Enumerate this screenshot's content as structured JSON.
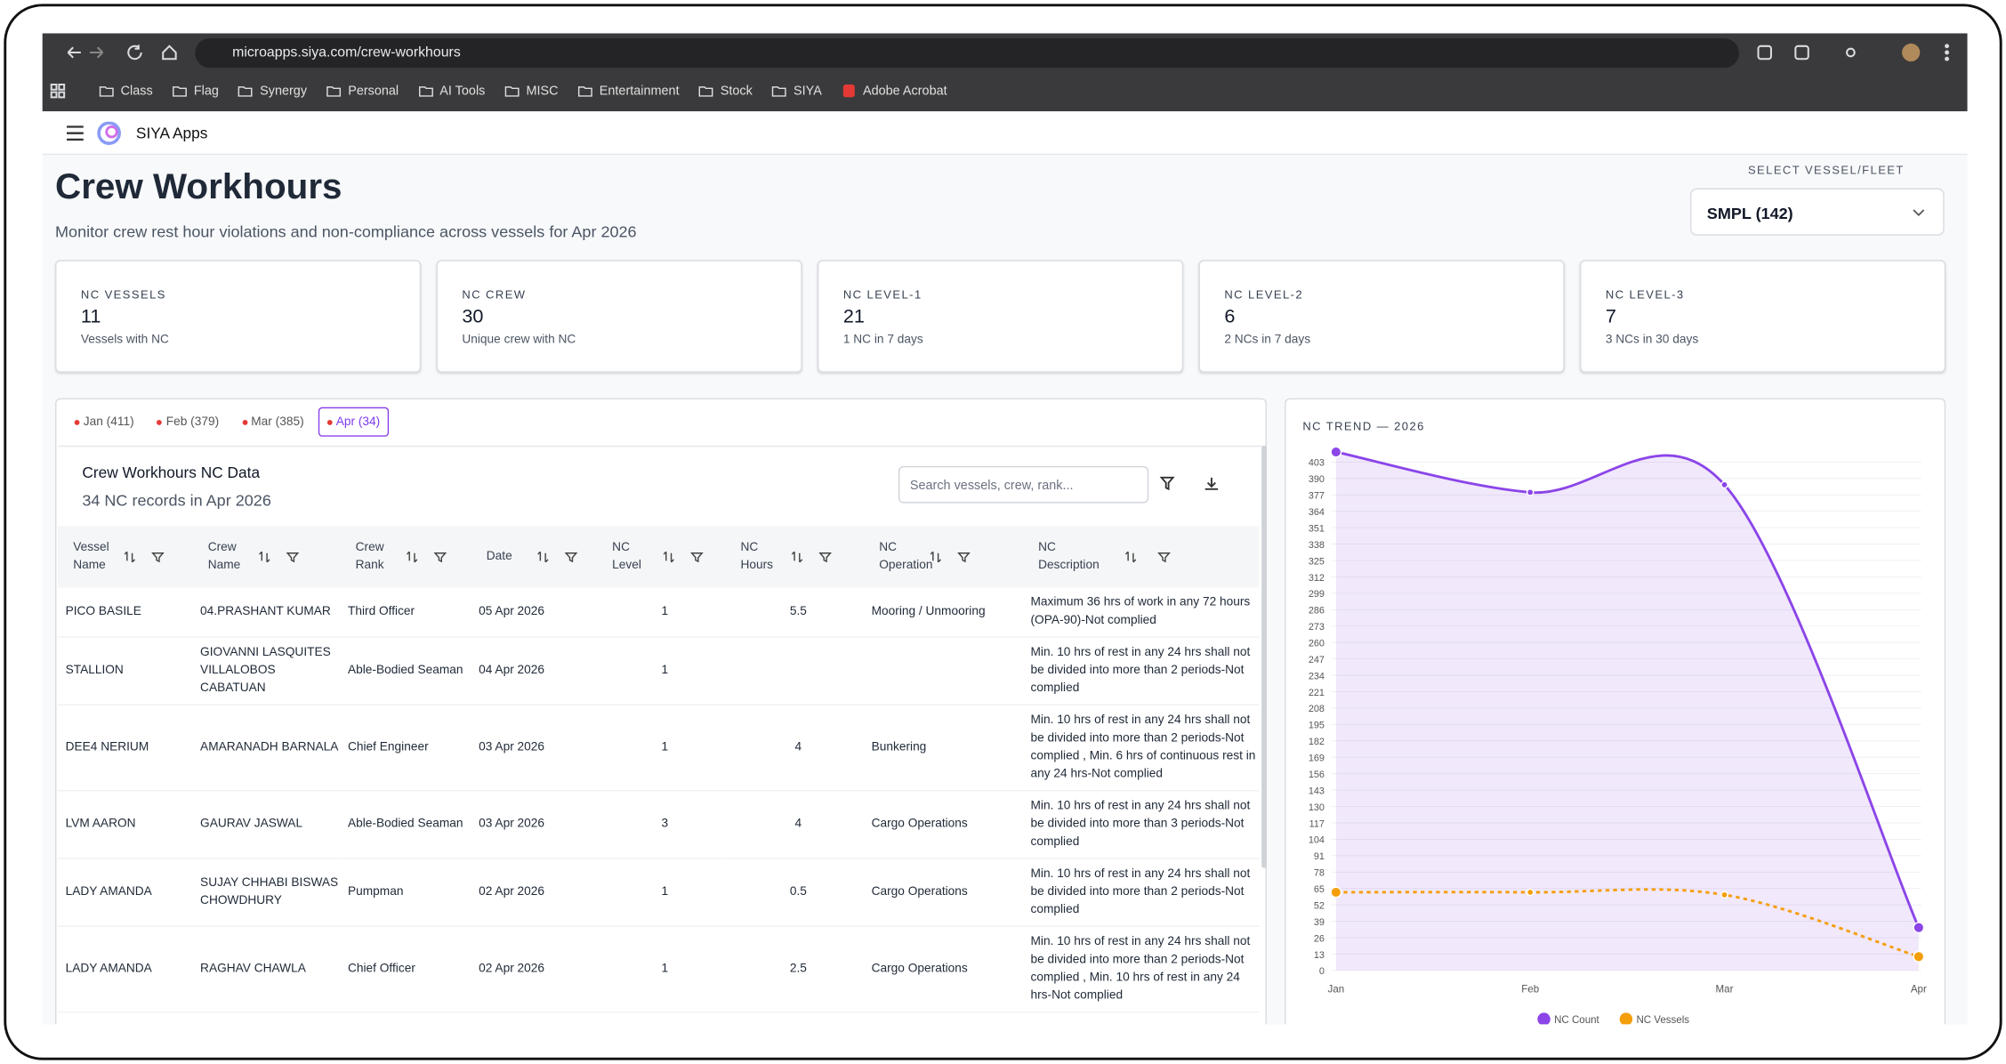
{
  "browser": {
    "url": "microapps.siya.com/crew-workhours",
    "bookmarks": [
      "Class",
      "Flag",
      "Synergy",
      "Personal",
      "AI Tools",
      "MISC",
      "Entertainment",
      "Stock",
      "SIYA",
      "Adobe Acrobat"
    ]
  },
  "app": {
    "name": "SIYA Apps"
  },
  "header": {
    "title": "Crew Workhours",
    "subtitle": "Monitor crew rest hour violations and non-compliance across vessels for Apr 2026",
    "selector_label": "SELECT VESSEL/FLEET",
    "selector_value": "SMPL (142)"
  },
  "cards": [
    {
      "label": "NC VESSELS",
      "value": 11,
      "note": "Vessels with NC"
    },
    {
      "label": "NC CREW",
      "value": 30,
      "note": "Unique crew with NC"
    },
    {
      "label": "NC LEVEL-1",
      "value": 21,
      "note": "1 NC in 7 days"
    },
    {
      "label": "NC LEVEL-2",
      "value": 6,
      "note": "2 NCs in 7 days"
    },
    {
      "label": "NC LEVEL-3",
      "value": 7,
      "note": "3 NCs in 30 days"
    }
  ],
  "tabs": [
    "Jan (411)",
    "Feb (379)",
    "Mar (385)",
    "Apr (34)"
  ],
  "active_tab": 3,
  "table": {
    "title": "Crew Workhours NC Data",
    "subtitle": "34 NC records in Apr 2026",
    "search_placeholder": "Search vessels, crew, rank...",
    "columns": [
      "Vessel Name",
      "Crew Name",
      "Crew Rank",
      "Date",
      "NC Level",
      "NC Hours",
      "NC Operation",
      "NC Description"
    ],
    "rows": [
      [
        "PICO BASILE",
        "04.PRASHANT KUMAR",
        "Third Officer",
        "05 Apr 2026",
        1,
        5.5,
        "Mooring / Unmooring",
        "Maximum 36 hrs of work in any 72 hours (OPA-90)-Not complied"
      ],
      [
        "STALLION",
        "GIOVANNI LASQUITES VILLALOBOS CABATUAN",
        "Able-Bodied Seaman",
        "04 Apr 2026",
        1,
        null,
        null,
        "Min. 10 hrs of rest in any 24 hrs shall not be divided into more than 2 periods-Not complied"
      ],
      [
        "DEE4 NERIUM",
        "AMARANADH BARNALA",
        "Chief Engineer",
        "03 Apr 2026",
        1,
        4,
        "Bunkering",
        "Min. 10 hrs of rest in any 24 hrs shall not be divided into more than 2 periods-Not complied , Min. 6 hrs of continuous rest in any 24 hrs-Not complied"
      ],
      [
        "LVM AARON",
        "GAURAV JASWAL",
        "Able-Bodied Seaman",
        "03 Apr 2026",
        3,
        4,
        "Cargo Operations",
        "Min. 10 hrs of rest in any 24 hrs shall not be divided into more than 3 periods-Not complied"
      ],
      [
        "LADY AMANDA",
        "SUJAY CHHABI BISWAS CHOWDHURY",
        "Pumpman",
        "02 Apr 2026",
        1,
        0.5,
        "Cargo Operations",
        "Min. 10 hrs of rest in any 24 hrs shall not be divided into more than 2 periods-Not complied"
      ],
      [
        "LADY AMANDA",
        "RAGHAV CHAWLA",
        "Chief Officer",
        "02 Apr 2026",
        1,
        2.5,
        "Cargo Operations",
        "Min. 10 hrs of rest in any 24 hrs shall not be divided into more than 2 periods-Not complied , Min. 10 hrs of rest in any 24 hrs-Not complied"
      ]
    ]
  },
  "chart_data": {
    "type": "line",
    "title": "NC TREND — 2026",
    "categories": [
      "Jan",
      "Feb",
      "Mar",
      "Apr"
    ],
    "series": [
      {
        "name": "NC Count",
        "color": "#8b45e8",
        "values": [
          411,
          379,
          385,
          34
        ],
        "area": true
      },
      {
        "name": "NC Vessels",
        "color": "#f59e0b",
        "values": [
          62,
          62,
          60,
          11
        ],
        "dashed": true
      }
    ],
    "ylim": [
      0,
      411
    ],
    "yticks": [
      0,
      13,
      26,
      39,
      52,
      65,
      78,
      91,
      104,
      117,
      130,
      143,
      156,
      169,
      182,
      195,
      208,
      221,
      234,
      247,
      260,
      273,
      286,
      299,
      312,
      325,
      338,
      351,
      364,
      377,
      390,
      403
    ],
    "grid": true
  }
}
